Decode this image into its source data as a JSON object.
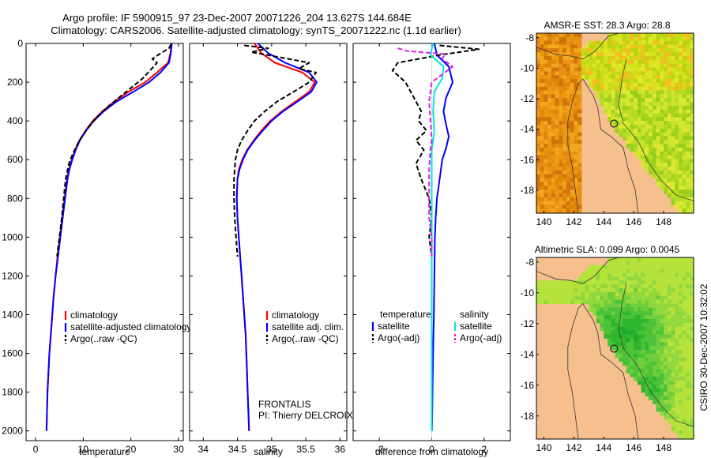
{
  "header": {
    "line1": "Argo profile: IF 5900915_97 23-Dec-2007 20071226_204 13.627S 144.684E",
    "line2": "Climatology: CARS2006. Satellite-adjusted climatology: synTS_20071222.nc (1.1d earlier)"
  },
  "colors": {
    "climatology": "#ff0000",
    "satellite": "#0000ff",
    "argo": "#000000",
    "salinity_satellite": "#00e5e5",
    "salinity_argo": "#e020e0",
    "land": "#f6c08e"
  },
  "footer": {
    "credit": "CSIRO 30-Dec-2007 10:32:02"
  },
  "chart_data": [
    {
      "type": "line",
      "id": "temperature",
      "xlabel": "temperature",
      "ylabel": "",
      "xlim": [
        -2,
        31
      ],
      "ylim": [
        2050,
        0
      ],
      "xticks": [
        0,
        10,
        20,
        30
      ],
      "yticks": [
        0,
        200,
        400,
        600,
        800,
        1000,
        1200,
        1400,
        1600,
        1800,
        2000
      ],
      "legend": [
        "climatology",
        "satellite-adjusted climatology",
        "Argo(..raw -QC)"
      ],
      "series": [
        {
          "name": "climatology",
          "color": "#ff0000",
          "dash": "",
          "points": [
            [
              28.5,
              0
            ],
            [
              28.3,
              50
            ],
            [
              27.8,
              100
            ],
            [
              25.5,
              150
            ],
            [
              23,
              200
            ],
            [
              19.5,
              250
            ],
            [
              16.5,
              300
            ],
            [
              14,
              350
            ],
            [
              12,
              400
            ],
            [
              10.5,
              450
            ],
            [
              9.2,
              500
            ],
            [
              8.3,
              550
            ],
            [
              7.6,
              600
            ],
            [
              7,
              650
            ],
            [
              6.6,
              700
            ],
            [
              6.1,
              800
            ],
            [
              5.6,
              900
            ],
            [
              5.1,
              1000
            ],
            [
              4.6,
              1100
            ],
            [
              4.2,
              1200
            ],
            [
              3.8,
              1300
            ],
            [
              3.5,
              1400
            ],
            [
              3.2,
              1500
            ],
            [
              2.9,
              1600
            ],
            [
              2.7,
              1700
            ],
            [
              2.5,
              1800
            ],
            [
              2.4,
              1900
            ],
            [
              2.3,
              2000
            ]
          ]
        },
        {
          "name": "satellite-adjusted climatology",
          "color": "#0000ff",
          "dash": "",
          "points": [
            [
              28.6,
              0
            ],
            [
              28.4,
              50
            ],
            [
              28,
              100
            ],
            [
              26.2,
              150
            ],
            [
              23.8,
              200
            ],
            [
              20.5,
              250
            ],
            [
              17,
              300
            ],
            [
              14.3,
              350
            ],
            [
              12.2,
              400
            ],
            [
              10.6,
              450
            ],
            [
              9.3,
              500
            ],
            [
              8.4,
              550
            ],
            [
              7.7,
              600
            ],
            [
              7.1,
              650
            ],
            [
              6.7,
              700
            ],
            [
              6.2,
              800
            ],
            [
              5.7,
              900
            ],
            [
              5.2,
              1000
            ],
            [
              4.7,
              1100
            ],
            [
              4.2,
              1200
            ],
            [
              3.8,
              1300
            ],
            [
              3.5,
              1400
            ],
            [
              3.2,
              1500
            ],
            [
              2.9,
              1600
            ],
            [
              2.7,
              1700
            ],
            [
              2.5,
              1800
            ],
            [
              2.4,
              1900
            ],
            [
              2.3,
              2000
            ]
          ]
        },
        {
          "name": "Argo(..raw -QC)",
          "color": "#000000",
          "dash": "6,3",
          "points": [
            [
              28.4,
              5
            ],
            [
              28,
              25
            ],
            [
              26.3,
              50
            ],
            [
              24.5,
              80
            ],
            [
              25.5,
              100
            ],
            [
              24,
              140
            ],
            [
              22.5,
              180
            ],
            [
              20.5,
              220
            ],
            [
              18,
              270
            ],
            [
              15.5,
              320
            ],
            [
              13.3,
              370
            ],
            [
              11.5,
              420
            ],
            [
              10,
              470
            ],
            [
              8.8,
              520
            ],
            [
              7.8,
              570
            ],
            [
              7,
              620
            ],
            [
              6.3,
              700
            ],
            [
              5.9,
              800
            ],
            [
              5.5,
              900
            ],
            [
              5.0,
              1000
            ],
            [
              4.5,
              1100
            ]
          ]
        }
      ]
    },
    {
      "type": "line",
      "id": "salinity",
      "xlabel": "salinity",
      "ylabel": "",
      "xlim": [
        33.8,
        36.1
      ],
      "ylim": [
        2050,
        0
      ],
      "xticks": [
        34,
        34.5,
        35,
        35.5,
        36
      ],
      "xticklabels": [
        "34",
        "34.5",
        "35",
        "35.5",
        "36"
      ],
      "legend": [
        "climatology",
        "satellite adj. clim.",
        "Argo(..raw -QC)"
      ],
      "annotation": [
        "FRONTALIS",
        "PI: Thierry DELCROIX"
      ],
      "series": [
        {
          "name": "climatology",
          "color": "#ff0000",
          "dash": "",
          "points": [
            [
              34.75,
              0
            ],
            [
              34.85,
              50
            ],
            [
              35.05,
              100
            ],
            [
              35.45,
              150
            ],
            [
              35.63,
              200
            ],
            [
              35.55,
              250
            ],
            [
              35.35,
              300
            ],
            [
              35.15,
              350
            ],
            [
              34.98,
              400
            ],
            [
              34.85,
              450
            ],
            [
              34.74,
              500
            ],
            [
              34.64,
              550
            ],
            [
              34.57,
              600
            ],
            [
              34.52,
              650
            ],
            [
              34.5,
              700
            ],
            [
              34.49,
              800
            ],
            [
              34.5,
              900
            ],
            [
              34.52,
              1000
            ],
            [
              34.54,
              1100
            ],
            [
              34.56,
              1200
            ],
            [
              34.58,
              1300
            ],
            [
              34.6,
              1400
            ],
            [
              34.62,
              1500
            ],
            [
              34.63,
              1600
            ],
            [
              34.64,
              1700
            ],
            [
              34.65,
              1800
            ],
            [
              34.66,
              1900
            ],
            [
              34.67,
              2000
            ]
          ]
        },
        {
          "name": "satellite adj. clim.",
          "color": "#0000ff",
          "dash": "",
          "points": [
            [
              34.8,
              0
            ],
            [
              34.95,
              50
            ],
            [
              35.2,
              100
            ],
            [
              35.55,
              150
            ],
            [
              35.66,
              200
            ],
            [
              35.58,
              250
            ],
            [
              35.38,
              300
            ],
            [
              35.17,
              350
            ],
            [
              35.0,
              400
            ],
            [
              34.87,
              450
            ],
            [
              34.75,
              500
            ],
            [
              34.65,
              550
            ],
            [
              34.58,
              600
            ],
            [
              34.53,
              650
            ],
            [
              34.5,
              700
            ],
            [
              34.49,
              800
            ],
            [
              34.5,
              900
            ],
            [
              34.52,
              1000
            ],
            [
              34.54,
              1100
            ],
            [
              34.56,
              1200
            ],
            [
              34.58,
              1300
            ],
            [
              34.6,
              1400
            ],
            [
              34.62,
              1500
            ],
            [
              34.63,
              1600
            ],
            [
              34.64,
              1700
            ],
            [
              34.65,
              1800
            ],
            [
              34.66,
              1900
            ],
            [
              34.67,
              2000
            ]
          ]
        },
        {
          "name": "Argo(..raw -QC)",
          "color": "#000000",
          "dash": "6,3",
          "points": [
            [
              34.6,
              10
            ],
            [
              34.95,
              25
            ],
            [
              34.7,
              45
            ],
            [
              35.1,
              70
            ],
            [
              35.55,
              100
            ],
            [
              35.4,
              130
            ],
            [
              35.65,
              150
            ],
            [
              35.55,
              200
            ],
            [
              35.32,
              250
            ],
            [
              35.08,
              300
            ],
            [
              34.9,
              350
            ],
            [
              34.75,
              400
            ],
            [
              34.65,
              450
            ],
            [
              34.56,
              500
            ],
            [
              34.5,
              550
            ],
            [
              34.47,
              600
            ],
            [
              34.45,
              700
            ],
            [
              34.45,
              800
            ],
            [
              34.46,
              900
            ],
            [
              34.48,
              1000
            ],
            [
              34.5,
              1100
            ]
          ]
        }
      ]
    },
    {
      "type": "line",
      "id": "difference",
      "xlabel": "difference from climatology",
      "ylabel": "",
      "xlim": [
        -3,
        3
      ],
      "ylim": [
        2050,
        0
      ],
      "xticks": [
        -2,
        0,
        2
      ],
      "legend_headers": [
        "temperature",
        "salinity"
      ],
      "legend": [
        "satellite",
        "Argo(-adj)",
        "satellite",
        "Argo(-adj)"
      ],
      "series": [
        {
          "name": "satellite",
          "group": "temperature",
          "color": "#0000ff",
          "dash": "",
          "points": [
            [
              0.1,
              0
            ],
            [
              0.2,
              60
            ],
            [
              0.65,
              120
            ],
            [
              0.8,
              200
            ],
            [
              0.55,
              280
            ],
            [
              0.45,
              350
            ],
            [
              0.55,
              420
            ],
            [
              0.65,
              480
            ],
            [
              0.55,
              540
            ],
            [
              0.4,
              600
            ],
            [
              0.3,
              700
            ],
            [
              0.2,
              800
            ],
            [
              0.15,
              900
            ],
            [
              0.12,
              1000
            ],
            [
              0.1,
              1200
            ],
            [
              0.08,
              1400
            ],
            [
              0.05,
              1600
            ],
            [
              0.03,
              1800
            ],
            [
              0.01,
              2000
            ]
          ]
        },
        {
          "name": "Argo(-adj)",
          "group": "temperature",
          "color": "#000000",
          "dash": "6,3",
          "points": [
            [
              0.3,
              10
            ],
            [
              1.8,
              30
            ],
            [
              0.3,
              60
            ],
            [
              -1.3,
              100
            ],
            [
              -1.5,
              140
            ],
            [
              -1,
              200
            ],
            [
              -0.6,
              300
            ],
            [
              -0.4,
              350
            ],
            [
              -0.5,
              400
            ],
            [
              -0.2,
              450
            ],
            [
              -0.6,
              500
            ],
            [
              -0.3,
              550
            ],
            [
              -0.6,
              620
            ],
            [
              -0.4,
              700
            ],
            [
              -0.1,
              800
            ],
            [
              0,
              900
            ],
            [
              -0.1,
              1000
            ],
            [
              0,
              1100
            ]
          ]
        },
        {
          "name": "satellite",
          "group": "salinity",
          "color": "#00e5e5",
          "dash": "",
          "points": [
            [
              0.05,
              0
            ],
            [
              -0.05,
              60
            ],
            [
              0.45,
              120
            ],
            [
              0.4,
              180
            ],
            [
              0.1,
              250
            ],
            [
              0.05,
              350
            ],
            [
              0.1,
              450
            ],
            [
              0,
              550
            ],
            [
              0,
              700
            ],
            [
              0,
              900
            ],
            [
              0,
              1200
            ],
            [
              0,
              1500
            ],
            [
              0,
              1800
            ],
            [
              0,
              2000
            ]
          ]
        },
        {
          "name": "Argo(-adj)",
          "group": "salinity",
          "color": "#e020e0",
          "dash": "6,3",
          "points": [
            [
              -1.3,
              25
            ],
            [
              -0.9,
              40
            ],
            [
              0.5,
              55
            ],
            [
              0.4,
              80
            ],
            [
              0.8,
              120
            ],
            [
              0.5,
              150
            ],
            [
              0,
              200
            ],
            [
              -0.1,
              300
            ],
            [
              -0.05,
              400
            ],
            [
              0,
              500
            ],
            [
              -0.05,
              550
            ],
            [
              -0.1,
              650
            ],
            [
              -0.1,
              800
            ],
            [
              -0.1,
              900
            ],
            [
              0,
              1000
            ],
            [
              0,
              1100
            ]
          ]
        }
      ]
    },
    {
      "type": "heatmap",
      "id": "sst_map",
      "title": "AMSR-E SST: 28.3 Argo: 28.8",
      "xlim": [
        139.5,
        150
      ],
      "ylim": [
        -19.5,
        -7.7
      ],
      "xticks": [
        140,
        142,
        144,
        146,
        148
      ],
      "yticks": [
        -8,
        -10,
        -12,
        -14,
        -16,
        -18
      ],
      "marker": [
        144.684,
        -13.627
      ]
    },
    {
      "type": "heatmap",
      "id": "sla_map",
      "title": "Altimetric SLA: 0.099 Argo: 0.0045",
      "xlim": [
        139.5,
        150
      ],
      "ylim": [
        -19.5,
        -7.7
      ],
      "xticks": [
        140,
        142,
        144,
        146,
        148
      ],
      "yticks": [
        -8,
        -10,
        -12,
        -14,
        -16,
        -18
      ],
      "marker": [
        144.684,
        -13.627
      ]
    }
  ]
}
